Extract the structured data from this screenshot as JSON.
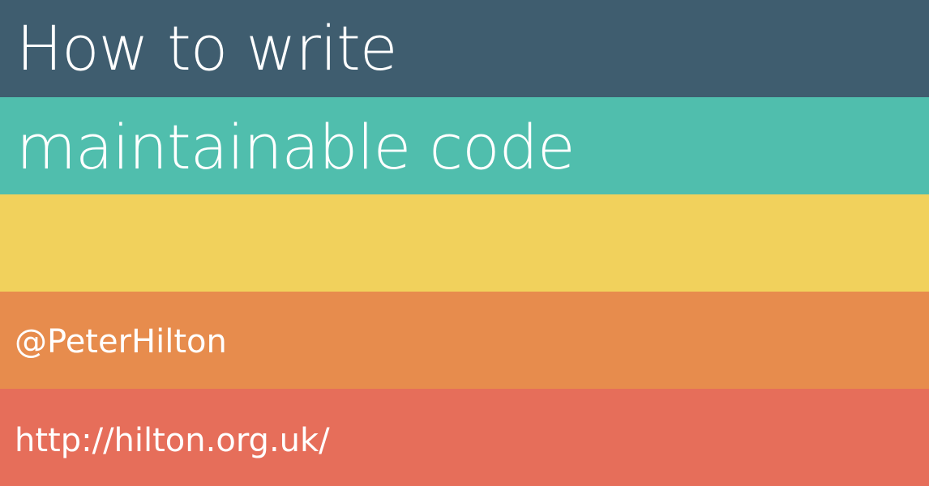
{
  "slide": {
    "title_line_1": "How to write",
    "title_line_2": "maintainable code",
    "twitter_handle": "@PeterHilton",
    "website_url": "http://hilton.org.uk/"
  },
  "colors": {
    "band_1": "#3f5d6f",
    "band_2": "#50bead",
    "band_3": "#f1d15c",
    "band_4": "#e78c4d",
    "band_5": "#e66e5a",
    "text": "#ffffff"
  }
}
